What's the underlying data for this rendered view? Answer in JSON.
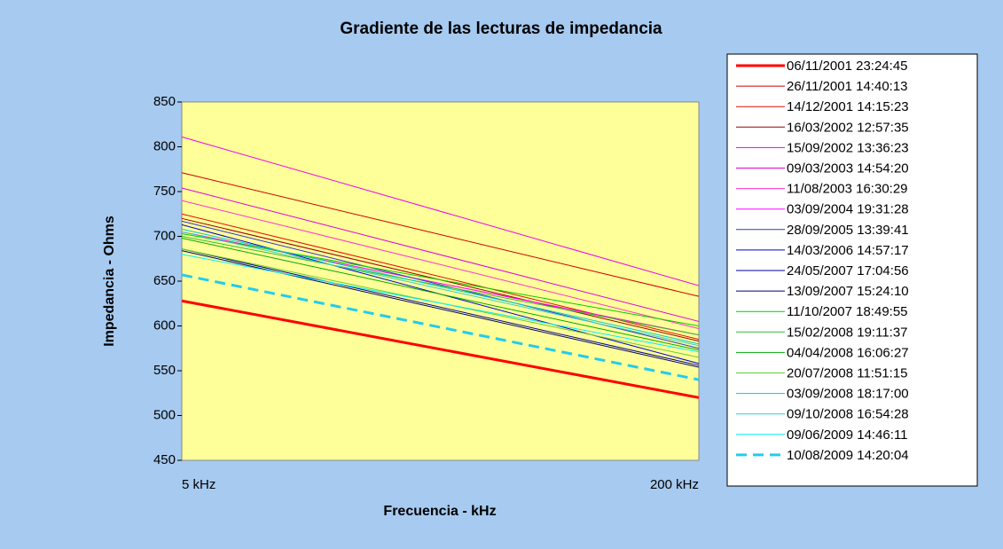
{
  "chart_data": {
    "type": "line",
    "title": "Gradiente de las lecturas de impedancia",
    "x_label": "Frecuencia - kHz",
    "y_label": "Impedancia - Ohms",
    "categories": [
      "5 kHz",
      "200 kHz"
    ],
    "ylim": [
      450,
      850
    ],
    "yticks": [
      450,
      500,
      550,
      600,
      650,
      700,
      750,
      800,
      850
    ],
    "grid": false,
    "legend": "right",
    "series": [
      {
        "name": "06/11/2001 23:24:45",
        "color": "#ff0000",
        "width": 3,
        "values": [
          628,
          520
        ]
      },
      {
        "name": "26/11/2001 14:40:13",
        "color": "#cc0000",
        "values": [
          771,
          633
        ]
      },
      {
        "name": "14/12/2001 14:15:23",
        "color": "#dd1100",
        "values": [
          725,
          585
        ]
      },
      {
        "name": "16/03/2002 12:57:35",
        "color": "#990000",
        "values": [
          720,
          583
        ]
      },
      {
        "name": "15/09/2002 13:36:23",
        "color": "#ee00ee",
        "values": [
          811,
          645
        ]
      },
      {
        "name": "09/03/2003 14:54:20",
        "color": "#dd00dd",
        "values": [
          754,
          605
        ]
      },
      {
        "name": "11/08/2003 16:30:29",
        "color": "#ff33cc",
        "values": [
          740,
          597
        ]
      },
      {
        "name": "03/09/2004 19:31:28",
        "color": "#ff00ff",
        "values": [
          705,
          590
        ]
      },
      {
        "name": "28/09/2005 13:39:41",
        "color": "#3333cc",
        "values": [
          717,
          575
        ]
      },
      {
        "name": "14/03/2006 14:57:17",
        "color": "#0000cc",
        "values": [
          713,
          558
        ]
      },
      {
        "name": "24/05/2007 17:04:56",
        "color": "#000099",
        "values": [
          686,
          556
        ]
      },
      {
        "name": "13/09/2007 15:24:10",
        "color": "#000066",
        "values": [
          684,
          554
        ]
      },
      {
        "name": "11/10/2007 18:49:55",
        "color": "#00cc00",
        "values": [
          703,
          600
        ]
      },
      {
        "name": "15/02/2008 19:11:37",
        "color": "#33bb33",
        "values": [
          700,
          590
        ]
      },
      {
        "name": "04/04/2008 16:06:27",
        "color": "#00aa00",
        "values": [
          698,
          573
        ]
      },
      {
        "name": "20/07/2008 11:51:15",
        "color": "#66cc33",
        "values": [
          686,
          565
        ]
      },
      {
        "name": "03/09/2008 18:17:00",
        "color": "#00cccc",
        "values": [
          708,
          580
        ]
      },
      {
        "name": "09/10/2008 16:54:28",
        "color": "#33cccc",
        "values": [
          705,
          578
        ]
      },
      {
        "name": "09/06/2009 14:46:11",
        "color": "#00eeff",
        "values": [
          680,
          571
        ]
      },
      {
        "name": "10/08/2009 14:20:04",
        "color": "#22ccee",
        "width": 3,
        "dash": true,
        "values": [
          657,
          540
        ]
      }
    ]
  }
}
